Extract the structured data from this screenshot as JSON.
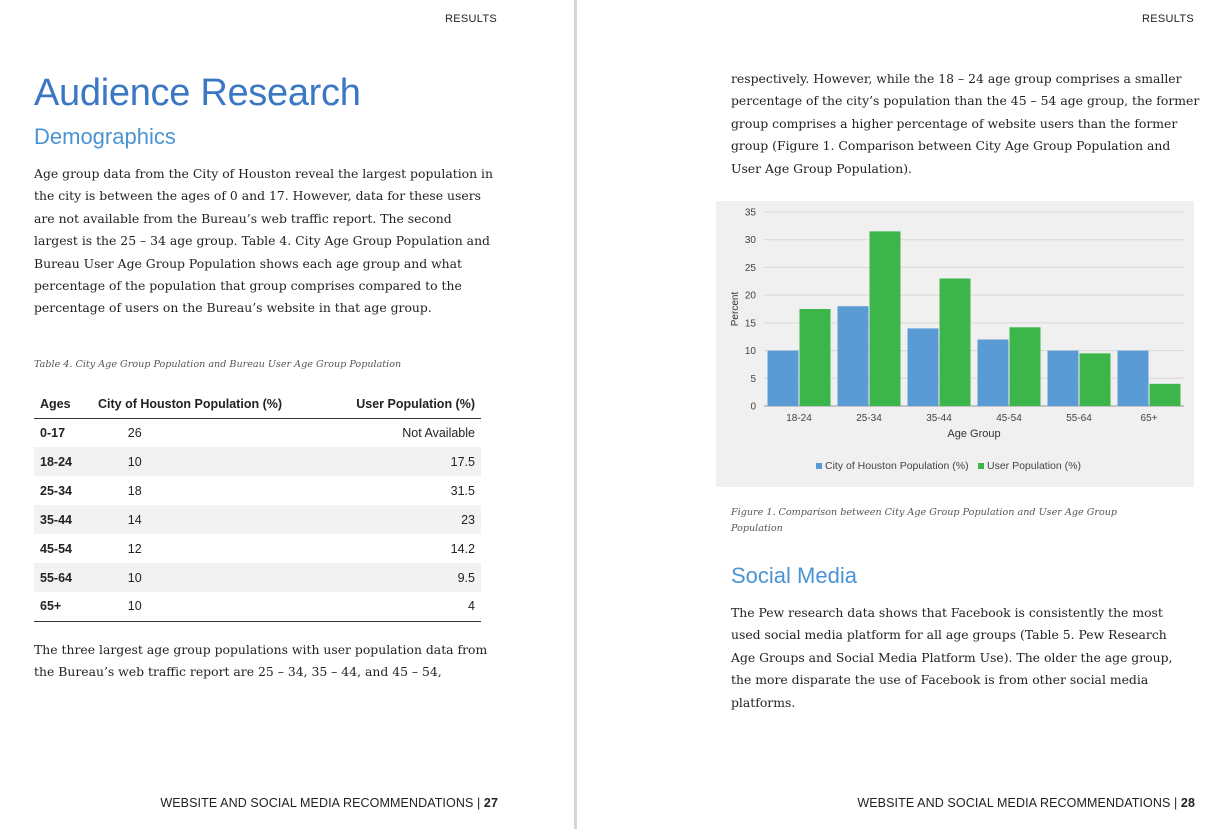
{
  "left": {
    "running_head": "RESULTS",
    "title": "Audience Research",
    "subtitle": "Demographics",
    "para1": "Age group data from the City of Houston reveal the largest population in the city is between the ages of 0 and 17. However, data for these users are not available from the Bureau’s web traffic report. The second largest is the 25 – 34 age group. Table 4. City Age Group Population and Bureau User Age Group Population shows each age group and what percentage of the population that group comprises compared to the percentage of users on the Bureau’s website in that age group.",
    "table_caption": "Table 4. City Age Group Population and Bureau User Age Group Population",
    "table": {
      "headers": [
        "Ages",
        "City of Houston Population (%)",
        "User Population (%)"
      ],
      "rows": [
        [
          "0-17",
          "26",
          "Not Available"
        ],
        [
          "18-24",
          "10",
          "17.5"
        ],
        [
          "25-34",
          "18",
          "31.5"
        ],
        [
          "35-44",
          "14",
          "23"
        ],
        [
          "45-54",
          "12",
          "14.2"
        ],
        [
          "55-64",
          "10",
          "9.5"
        ],
        [
          "65+",
          "10",
          "4"
        ]
      ]
    },
    "para2": "The three largest age group populations with user population data from the Bureau’s web traffic report are 25 – 34, 35 – 44, and 45 – 54,",
    "footer_text": "WEBSITE AND SOCIAL MEDIA RECOMMENDATIONS | ",
    "page_number": "27"
  },
  "right": {
    "running_head": "RESULTS",
    "para1": "respectively. However, while the 18 – 24 age group comprises a smaller percentage of the city’s population than the 45 – 54 age group, the former group comprises a higher percentage of website users than the former group (Figure 1. Comparison between City Age Group Population and User Age Group Population).",
    "figure_caption": "Figure 1. Comparison between City Age Group Population and User Age Group Population",
    "social_heading": "Social Media",
    "para2": "The Pew research data shows that Facebook is consistently the most used social media platform for all age groups (Table 5. Pew Research Age Groups and Social Media Platform Use). The older the age group, the more disparate the use of Facebook is from other social media platforms.",
    "footer_text": "WEBSITE AND SOCIAL MEDIA RECOMMENDATIONS | ",
    "page_number": "28"
  },
  "chart_data": {
    "type": "bar",
    "categories": [
      "18-24",
      "25-34",
      "35-44",
      "45-54",
      "55-64",
      "65+"
    ],
    "series": [
      {
        "name": "City of Houston Population (%)",
        "values": [
          10,
          18,
          14,
          12,
          10,
          10
        ],
        "color": "#5b9bd5"
      },
      {
        "name": "User Population (%)",
        "values": [
          17.5,
          31.5,
          23,
          14.2,
          9.5,
          4
        ],
        "color": "#3cb54a"
      }
    ],
    "xlabel": "Age Group",
    "ylabel": "Percent",
    "ylim": [
      0,
      35
    ],
    "yticks": [
      0,
      5,
      10,
      15,
      20,
      25,
      30,
      35
    ],
    "grid": true,
    "legend_position": "bottom",
    "background": "#f0f0f0"
  }
}
